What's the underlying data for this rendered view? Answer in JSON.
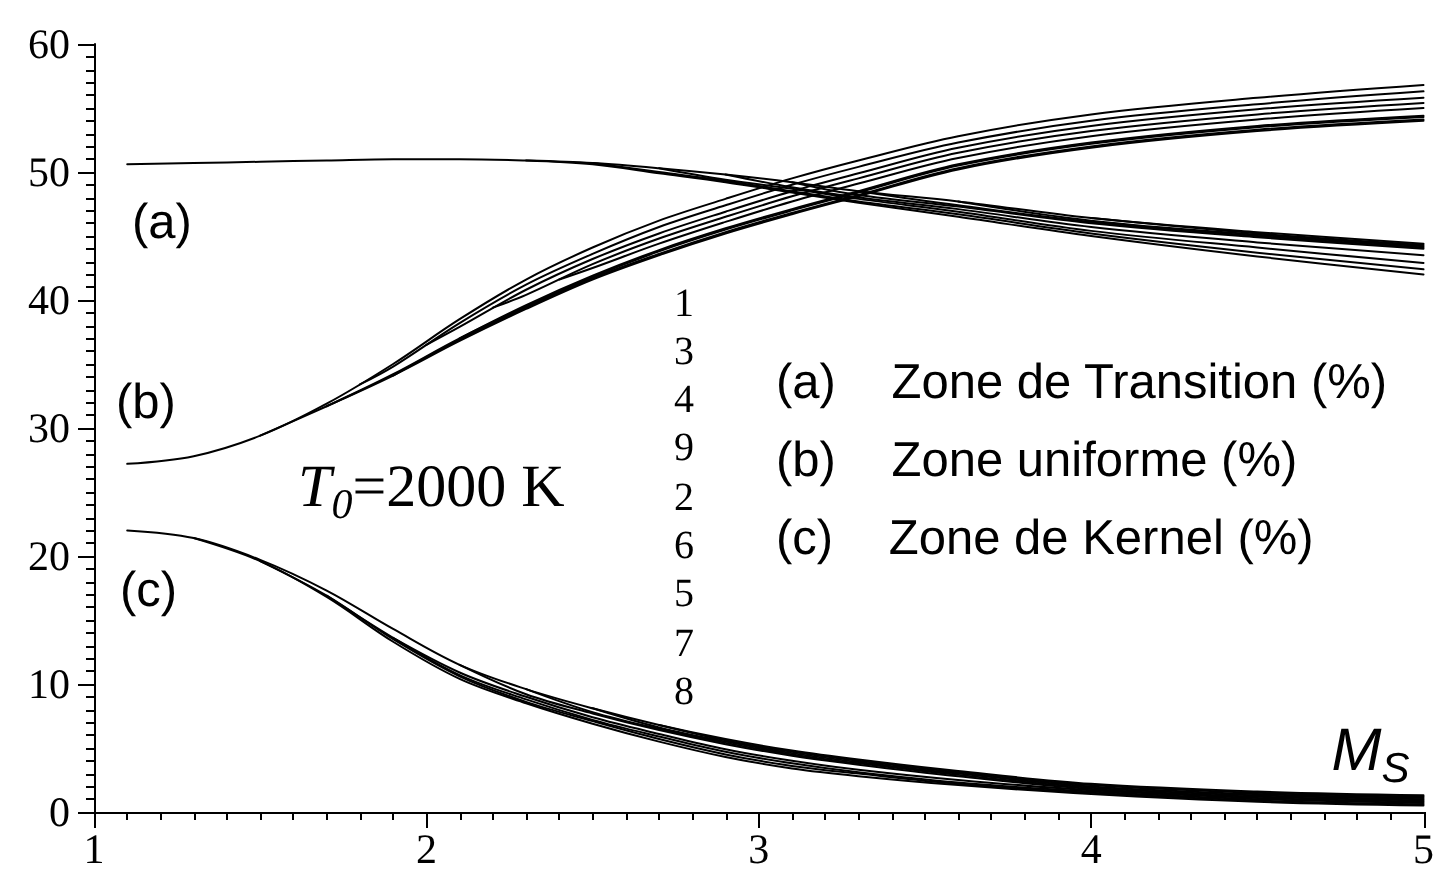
{
  "chart_data": {
    "type": "line",
    "xlabel": "M$_{S}$",
    "marker": "none",
    "line_style": "solid",
    "xlim": [
      1,
      5
    ],
    "ylim": [
      0,
      60
    ],
    "xticks": [
      1,
      {
        "value": 1.1,
        "label": null
      },
      {
        "value": 1.2,
        "label": null
      },
      {
        "value": 1.3,
        "label": null
      },
      {
        "value": 1.4,
        "label": null
      },
      {
        "value": 1.5,
        "label": null
      },
      {
        "value": 1.6,
        "label": null
      },
      {
        "value": 1.7,
        "label": null
      },
      {
        "value": 1.8,
        "label": null
      },
      {
        "value": 1.9,
        "label": null
      },
      2,
      {
        "value": 2.1,
        "label": null
      },
      {
        "value": 2.2,
        "label": null
      },
      {
        "value": 2.3,
        "label": null
      },
      {
        "value": 2.4,
        "label": null
      },
      {
        "value": 2.5,
        "label": null
      },
      {
        "value": 2.6,
        "label": null
      },
      {
        "value": 2.7,
        "label": null
      },
      {
        "value": 2.8,
        "label": null
      },
      {
        "value": 2.9,
        "label": null
      },
      3,
      {
        "value": 3.1,
        "label": null
      },
      {
        "value": 3.2,
        "label": null
      },
      {
        "value": 3.3,
        "label": null
      },
      {
        "value": 3.4,
        "label": null
      },
      {
        "value": 3.5,
        "label": null
      },
      {
        "value": 3.6,
        "label": null
      },
      {
        "value": 3.7,
        "label": null
      },
      {
        "value": 3.8,
        "label": null
      },
      {
        "value": 3.9,
        "label": null
      },
      4,
      {
        "value": 4.1,
        "label": null
      },
      {
        "value": 4.2,
        "label": null
      },
      {
        "value": 4.3,
        "label": null
      },
      {
        "value": 4.4,
        "label": null
      },
      {
        "value": 4.5,
        "label": null
      },
      {
        "value": 4.6,
        "label": null
      },
      {
        "value": 4.7,
        "label": null
      },
      {
        "value": 4.8,
        "label": null
      },
      {
        "value": 4.9,
        "label": null
      },
      5
    ],
    "yticks": [
      0,
      {
        "value": 1,
        "label": null
      },
      {
        "value": 2,
        "label": null
      },
      {
        "value": 3,
        "label": null
      },
      {
        "value": 4,
        "label": null
      },
      {
        "value": 5,
        "label": null
      },
      {
        "value": 6,
        "label": null
      },
      {
        "value": 7,
        "label": null
      },
      {
        "value": 8,
        "label": null
      },
      {
        "value": 9,
        "label": null
      },
      10,
      {
        "value": 11,
        "label": null
      },
      {
        "value": 12,
        "label": null
      },
      {
        "value": 13,
        "label": null
      },
      {
        "value": 14,
        "label": null
      },
      {
        "value": 15,
        "label": null
      },
      {
        "value": 16,
        "label": null
      },
      {
        "value": 17,
        "label": null
      },
      {
        "value": 18,
        "label": null
      },
      {
        "value": 19,
        "label": null
      },
      20,
      {
        "value": 21,
        "label": null
      },
      {
        "value": 22,
        "label": null
      },
      {
        "value": 23,
        "label": null
      },
      {
        "value": 24,
        "label": null
      },
      {
        "value": 25,
        "label": null
      },
      {
        "value": 26,
        "label": null
      },
      {
        "value": 27,
        "label": null
      },
      {
        "value": 28,
        "label": null
      },
      {
        "value": 29,
        "label": null
      },
      30,
      {
        "value": 31,
        "label": null
      },
      {
        "value": 32,
        "label": null
      },
      {
        "value": 33,
        "label": null
      },
      {
        "value": 34,
        "label": null
      },
      {
        "value": 35,
        "label": null
      },
      {
        "value": 36,
        "label": null
      },
      {
        "value": 37,
        "label": null
      },
      {
        "value": 38,
        "label": null
      },
      {
        "value": 39,
        "label": null
      },
      40,
      {
        "value": 41,
        "label": null
      },
      {
        "value": 42,
        "label": null
      },
      {
        "value": 43,
        "label": null
      },
      {
        "value": 44,
        "label": null
      },
      {
        "value": 45,
        "label": null
      },
      {
        "value": 46,
        "label": null
      },
      {
        "value": 47,
        "label": null
      },
      {
        "value": 48,
        "label": null
      },
      {
        "value": 49,
        "label": null
      },
      50,
      {
        "value": 51,
        "label": null
      },
      {
        "value": 52,
        "label": null
      },
      {
        "value": 53,
        "label": null
      },
      {
        "value": 54,
        "label": null
      },
      {
        "value": 55,
        "label": null
      },
      {
        "value": 56,
        "label": null
      },
      {
        "value": 57,
        "label": null
      },
      {
        "value": 58,
        "label": null
      },
      {
        "value": 59,
        "label": null
      },
      60
    ],
    "x": [
      1.1,
      1.3,
      1.5,
      1.7,
      1.9,
      2.1,
      2.3,
      2.5,
      2.7,
      2.9,
      3.1,
      3.3,
      3.6,
      4,
      4.5,
      5
    ],
    "series": [
      {
        "color": "#000000",
        "values": [
          50.6,
          50.7,
          50.8,
          50.9,
          51.0,
          51.0,
          50.9,
          50.7,
          50.3,
          49.8,
          49.2,
          48.5,
          47.7,
          46.4,
          45.3,
          44.4
        ]
      },
      {
        "color": "#000000",
        "values": [
          null,
          null,
          null,
          null,
          null,
          null,
          null,
          null,
          null,
          null,
          null,
          null,
          null,
          46.4,
          45.2,
          44.3
        ]
      },
      {
        "color": "#000000",
        "values": [
          null,
          null,
          null,
          null,
          null,
          null,
          null,
          null,
          null,
          null,
          null,
          null,
          47.7,
          46.2,
          45.1,
          44.2
        ]
      },
      {
        "color": "#000000",
        "values": [
          null,
          null,
          null,
          null,
          null,
          null,
          null,
          null,
          null,
          null,
          null,
          48.5,
          47.4,
          46.1,
          45.0,
          44.1
        ]
      },
      {
        "color": "#000000",
        "values": [
          null,
          null,
          null,
          null,
          null,
          null,
          null,
          null,
          null,
          null,
          49.2,
          48.2,
          47.3,
          46.0,
          44.9,
          44.0
        ]
      },
      {
        "color": "#000000",
        "values": [
          null,
          null,
          null,
          null,
          null,
          null,
          null,
          null,
          null,
          49.8,
          48.8,
          48.0,
          47.1,
          45.7,
          44.5,
          43.5
        ]
      },
      {
        "color": "#000000",
        "values": [
          null,
          null,
          null,
          null,
          null,
          null,
          null,
          null,
          50.3,
          49.4,
          48.7,
          47.9,
          46.9,
          45.4,
          44.1,
          42.9
        ]
      },
      {
        "color": "#000000",
        "values": [
          null,
          null,
          null,
          null,
          null,
          null,
          null,
          50.7,
          50.0,
          49.3,
          48.5,
          47.7,
          46.7,
          45.2,
          43.7,
          42.4
        ]
      },
      {
        "color": "#000000",
        "values": [
          null,
          null,
          null,
          null,
          null,
          null,
          50.9,
          50.6,
          49.9,
          49.2,
          48.4,
          47.6,
          46.5,
          45.0,
          43.4,
          42.0
        ]
      },
      {
        "color": "#000000",
        "values": [
          27.2,
          27.8,
          29.4,
          31.9,
          35.0,
          38.5,
          41.6,
          44.1,
          46.2,
          47.9,
          49.5,
          50.9,
          52.8,
          54.5,
          55.8,
          56.8
        ]
      },
      {
        "color": "#000000",
        "x": [
          1.8,
          1.9,
          2.1,
          2.3,
          2.5,
          2.7,
          2.9,
          3.1,
          3.3,
          3.6,
          4,
          4.5,
          5
        ],
        "values": [
          33.4,
          34.8,
          38.2,
          41.2,
          43.6,
          45.7,
          47.4,
          49.0,
          50.4,
          52.3,
          54.0,
          55.3,
          56.3
        ]
      },
      {
        "color": "#000000",
        "x": [
          2.0,
          2.1,
          2.3,
          2.5,
          2.7,
          2.9,
          3.1,
          3.3,
          3.6,
          4,
          4.5,
          5
        ],
        "values": [
          36.5,
          37.9,
          40.8,
          43.2,
          45.2,
          46.9,
          48.5,
          49.9,
          51.9,
          53.6,
          54.9,
          55.8
        ]
      },
      {
        "color": "#000000",
        "x": [
          2.2,
          2.3,
          2.5,
          2.7,
          2.9,
          3.1,
          3.3,
          3.6,
          4,
          4.5,
          5
        ],
        "values": [
          39.4,
          40.4,
          42.8,
          44.8,
          46.5,
          48.1,
          49.5,
          51.5,
          53.2,
          54.5,
          55.4
        ]
      },
      {
        "color": "#000000",
        "x": [
          2.4,
          2.5,
          2.7,
          2.9,
          3.1,
          3.3,
          3.6,
          4,
          4.5,
          5
        ],
        "values": [
          41.6,
          42.5,
          44.4,
          46.1,
          47.7,
          49.1,
          51.1,
          52.8,
          54.1,
          55.0
        ]
      },
      {
        "color": "#000000",
        "values": [
          null,
          null,
          null,
          null,
          null,
          37.0,
          39.6,
          41.9,
          43.9,
          45.6,
          47.1,
          48.5,
          50.6,
          52.3,
          53.6,
          54.4
        ]
      },
      {
        "color": "#000000",
        "values": [
          null,
          null,
          null,
          31.7,
          34.2,
          37.0,
          39.5,
          41.8,
          43.8,
          45.5,
          47.0,
          48.4,
          50.5,
          52.2,
          53.5,
          54.3
        ]
      },
      {
        "color": "#000000",
        "values": [
          null,
          null,
          null,
          null,
          34.1,
          36.9,
          39.4,
          41.7,
          43.6,
          45.3,
          46.8,
          48.2,
          50.3,
          52.0,
          53.3,
          54.1
        ]
      },
      {
        "color": "#000000",
        "values": [
          null,
          null,
          29.4,
          31.7,
          34.1,
          36.8,
          39.3,
          41.6,
          43.5,
          45.2,
          46.7,
          48.1,
          50.2,
          51.9,
          53.2,
          54.0
        ]
      },
      {
        "color": "#000000",
        "values": [
          22.0,
          21.4,
          19.7,
          17.3,
          14.3,
          11.5,
          9.6,
          8.1,
          6.8,
          5.7,
          4.8,
          4.1,
          3.2,
          2.2,
          1.6,
          1.3
        ]
      },
      {
        "color": "#000000",
        "values": [
          null,
          null,
          null,
          null,
          null,
          null,
          null,
          null,
          6.8,
          5.6,
          4.7,
          4.0,
          3.1,
          2.1,
          1.5,
          1.2
        ]
      },
      {
        "color": "#000000",
        "values": [
          null,
          null,
          null,
          null,
          null,
          null,
          null,
          8.1,
          6.6,
          5.5,
          4.6,
          3.9,
          3.0,
          2.0,
          1.4,
          1.1
        ]
      },
      {
        "color": "#000000",
        "values": [
          null,
          null,
          null,
          null,
          null,
          null,
          9.6,
          7.8,
          6.5,
          5.4,
          4.5,
          3.8,
          2.9,
          1.9,
          1.3,
          1.0
        ]
      },
      {
        "color": "#000000",
        "values": [
          null,
          null,
          null,
          null,
          null,
          11.5,
          9.2,
          7.7,
          6.4,
          5.3,
          4.4,
          3.7,
          2.8,
          1.8,
          1.2,
          0.9
        ]
      },
      {
        "color": "#000000",
        "values": [
          null,
          null,
          null,
          null,
          13.6,
          10.9,
          9.0,
          7.4,
          6.1,
          4.9,
          4.0,
          3.3,
          2.5,
          1.7,
          1.1,
          0.8
        ]
      },
      {
        "color": "#000000",
        "values": [
          null,
          null,
          null,
          16.9,
          13.6,
          10.7,
          8.8,
          7.2,
          5.9,
          4.7,
          3.8,
          3.1,
          2.3,
          1.6,
          1.0,
          0.7
        ]
      },
      {
        "color": "#000000",
        "values": [
          null,
          null,
          19.6,
          16.9,
          13.5,
          10.6,
          8.6,
          7.1,
          5.7,
          4.5,
          3.6,
          3.0,
          2.2,
          1.5,
          0.9,
          0.6
        ]
      },
      {
        "color": "#000000",
        "values": [
          null,
          21.4,
          19.6,
          16.8,
          13.3,
          10.4,
          8.5,
          6.9,
          5.5,
          4.3,
          3.4,
          2.8,
          2.1,
          1.4,
          0.8,
          0.5
        ]
      }
    ],
    "annotations": [
      "(a)",
      "(b)",
      "(c)",
      "T$_{0}$=2000 K",
      "1\n3\n4\n9\n2\n6\n5\n7\n8",
      "(a) Zone de Transition (%)",
      "(b) Zone uniforme (%)",
      "(c) Zone de Kernel (%)"
    ]
  }
}
